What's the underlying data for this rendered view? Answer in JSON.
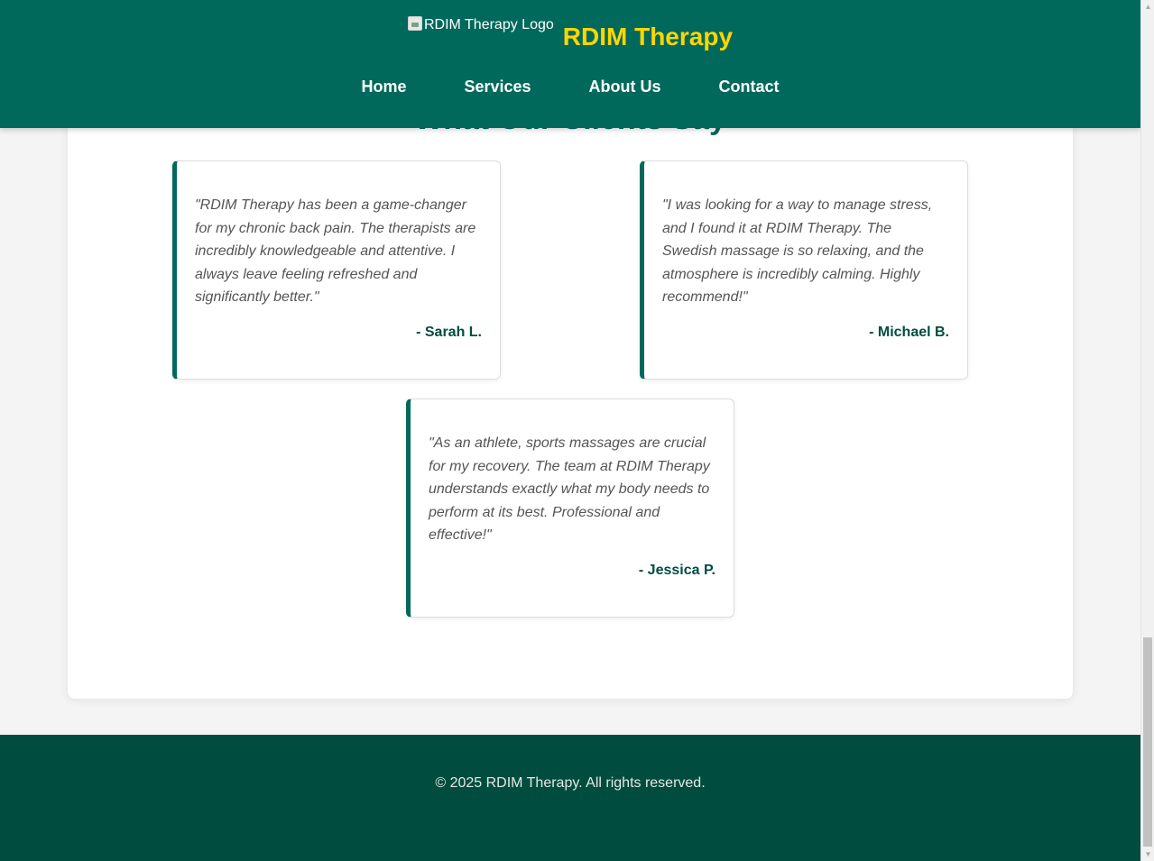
{
  "header": {
    "logo_alt": "RDIM Therapy Logo",
    "site_title": "RDIM Therapy",
    "nav": [
      {
        "label": "Home"
      },
      {
        "label": "Services"
      },
      {
        "label": "About Us"
      },
      {
        "label": "Contact"
      }
    ]
  },
  "testimonials": {
    "title": "What Our Clients Say",
    "items": [
      {
        "quote": "\"RDIM Therapy has been a game-changer for my chronic back pain. The therapists are incredibly knowledgeable and attentive. I always leave feeling refreshed and significantly better.\"",
        "author": "- Sarah L."
      },
      {
        "quote": "\"I was looking for a way to manage stress, and I found it at RDIM Therapy. The Swedish massage is so relaxing, and the atmosphere is incredibly calming. Highly recommend!\"",
        "author": "- Michael B."
      },
      {
        "quote": "\"As an athlete, sports massages are crucial for my recovery. The team at RDIM Therapy understands exactly what my body needs to perform at its best. Professional and effective!\"",
        "author": "- Jessica P."
      }
    ]
  },
  "footer": {
    "copyright": "© 2025 RDIM Therapy. All rights reserved."
  },
  "colors": {
    "header_bg": "#00695c",
    "title_yellow": "#ffd600",
    "footer_bg": "#004d40",
    "accent": "#00695c"
  }
}
